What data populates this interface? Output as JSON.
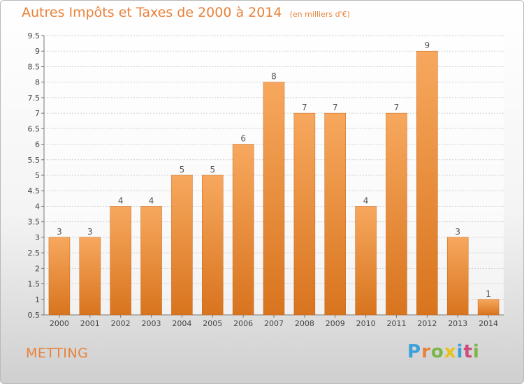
{
  "header": {
    "title": "Autres Impôts et Taxes de 2000 à 2014",
    "unit": "(en milliers d'€)"
  },
  "footer": {
    "commune": "METTING",
    "logo_text": "Proxiti",
    "logo_colors": [
      "#3aa0dc",
      "#e8823a",
      "#7ab648",
      "#e6c21a",
      "#3aa0dc",
      "#d04a7a",
      "#7ab648"
    ]
  },
  "colors": {
    "accent": "#e8823a",
    "bar_top": "#f7a85e",
    "bar_bottom": "#d8741e",
    "gridline": "#d0d0d0"
  },
  "chart_data": {
    "type": "bar",
    "title": "Autres Impôts et Taxes de 2000 à 2014",
    "xlabel": "",
    "ylabel": "",
    "categories": [
      "2000",
      "2001",
      "2002",
      "2003",
      "2004",
      "2005",
      "2006",
      "2007",
      "2008",
      "2009",
      "2010",
      "2011",
      "2012",
      "2013",
      "2014"
    ],
    "values": [
      3,
      3,
      4,
      4,
      5,
      5,
      6,
      8,
      7,
      7,
      4,
      7,
      9,
      3,
      1
    ],
    "ylim": [
      0.5,
      9.5
    ],
    "yticks": [
      "0.5",
      "1",
      "1.5",
      "2",
      "2.5",
      "3",
      "3.5",
      "4",
      "4.5",
      "5",
      "5.5",
      "6",
      "6.5",
      "7",
      "7.5",
      "8",
      "8.5",
      "9",
      "9.5"
    ],
    "grid": true,
    "legend": "none"
  }
}
